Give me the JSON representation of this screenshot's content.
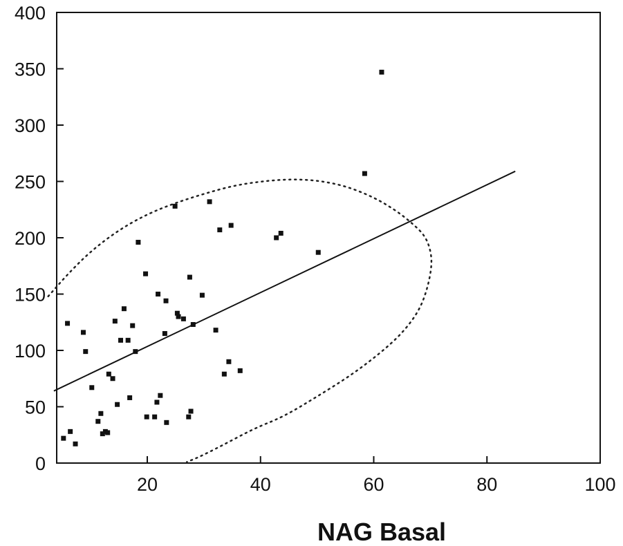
{
  "chart_data": {
    "type": "scatter",
    "title": "",
    "xlabel": "NAG Basal",
    "ylabel": "",
    "xlim": [
      0,
      100
    ],
    "ylim": [
      0,
      400
    ],
    "x_ticks": [
      "20",
      "40",
      "60",
      "80",
      "100"
    ],
    "y_ticks": [
      "0",
      "50",
      "100",
      "150",
      "200",
      "250",
      "300",
      "350",
      "400"
    ],
    "x_tick_values": [
      20,
      40,
      60,
      80,
      100
    ],
    "y_tick_values": [
      0,
      50,
      100,
      150,
      200,
      250,
      300,
      350,
      400
    ],
    "grid": false,
    "colors": {
      "points": "#111111",
      "line": "#111111",
      "ellipse": "#222222",
      "frame": "#111111"
    },
    "points": [
      {
        "x": 5.2,
        "y": 22
      },
      {
        "x": 6.4,
        "y": 28
      },
      {
        "x": 7.3,
        "y": 17
      },
      {
        "x": 5.9,
        "y": 124
      },
      {
        "x": 8.7,
        "y": 116
      },
      {
        "x": 9.1,
        "y": 99
      },
      {
        "x": 10.2,
        "y": 67
      },
      {
        "x": 11.3,
        "y": 37
      },
      {
        "x": 11.8,
        "y": 44
      },
      {
        "x": 12.1,
        "y": 26
      },
      {
        "x": 12.6,
        "y": 28
      },
      {
        "x": 13.0,
        "y": 27
      },
      {
        "x": 13.2,
        "y": 79
      },
      {
        "x": 13.9,
        "y": 75
      },
      {
        "x": 14.3,
        "y": 126
      },
      {
        "x": 14.7,
        "y": 52
      },
      {
        "x": 15.3,
        "y": 109
      },
      {
        "x": 15.9,
        "y": 137
      },
      {
        "x": 16.6,
        "y": 109
      },
      {
        "x": 16.9,
        "y": 58
      },
      {
        "x": 17.4,
        "y": 122
      },
      {
        "x": 17.9,
        "y": 99
      },
      {
        "x": 18.4,
        "y": 196
      },
      {
        "x": 19.7,
        "y": 168
      },
      {
        "x": 19.9,
        "y": 41
      },
      {
        "x": 21.3,
        "y": 41
      },
      {
        "x": 21.7,
        "y": 54
      },
      {
        "x": 22.3,
        "y": 60
      },
      {
        "x": 21.9,
        "y": 150
      },
      {
        "x": 23.1,
        "y": 115
      },
      {
        "x": 23.3,
        "y": 144
      },
      {
        "x": 23.4,
        "y": 36
      },
      {
        "x": 25.3,
        "y": 133
      },
      {
        "x": 25.5,
        "y": 130
      },
      {
        "x": 24.9,
        "y": 228
      },
      {
        "x": 26.4,
        "y": 128
      },
      {
        "x": 27.3,
        "y": 41
      },
      {
        "x": 27.5,
        "y": 165
      },
      {
        "x": 27.7,
        "y": 46
      },
      {
        "x": 28.1,
        "y": 123
      },
      {
        "x": 29.7,
        "y": 149
      },
      {
        "x": 31.0,
        "y": 232
      },
      {
        "x": 32.1,
        "y": 118
      },
      {
        "x": 32.8,
        "y": 207
      },
      {
        "x": 33.6,
        "y": 79
      },
      {
        "x": 34.4,
        "y": 90
      },
      {
        "x": 34.8,
        "y": 211
      },
      {
        "x": 36.4,
        "y": 82
      },
      {
        "x": 42.8,
        "y": 200
      },
      {
        "x": 43.6,
        "y": 204
      },
      {
        "x": 50.2,
        "y": 187
      },
      {
        "x": 58.4,
        "y": 257
      },
      {
        "x": 61.4,
        "y": 347
      }
    ],
    "regression_line": [
      {
        "x": 3.5,
        "y": 64
      },
      {
        "x": 85,
        "y": 259
      }
    ],
    "confidence_ellipse": [
      {
        "x": 2.5,
        "y": 148
      },
      {
        "x": 6,
        "y": 168
      },
      {
        "x": 10,
        "y": 188
      },
      {
        "x": 15,
        "y": 207
      },
      {
        "x": 20,
        "y": 221
      },
      {
        "x": 25,
        "y": 231
      },
      {
        "x": 30,
        "y": 239
      },
      {
        "x": 35,
        "y": 246
      },
      {
        "x": 40,
        "y": 250
      },
      {
        "x": 45,
        "y": 252
      },
      {
        "x": 50,
        "y": 251
      },
      {
        "x": 55,
        "y": 246
      },
      {
        "x": 60,
        "y": 236
      },
      {
        "x": 64,
        "y": 224
      },
      {
        "x": 67,
        "y": 212
      },
      {
        "x": 69,
        "y": 202
      },
      {
        "x": 70,
        "y": 190
      },
      {
        "x": 70.3,
        "y": 176
      },
      {
        "x": 69.5,
        "y": 155
      },
      {
        "x": 68,
        "y": 135
      },
      {
        "x": 65,
        "y": 115
      },
      {
        "x": 61,
        "y": 97
      },
      {
        "x": 56,
        "y": 78
      },
      {
        "x": 50,
        "y": 59
      },
      {
        "x": 44,
        "y": 41
      },
      {
        "x": 39,
        "y": 31
      },
      {
        "x": 33,
        "y": 15
      },
      {
        "x": 29,
        "y": 5
      },
      {
        "x": 27,
        "y": 1
      }
    ]
  }
}
